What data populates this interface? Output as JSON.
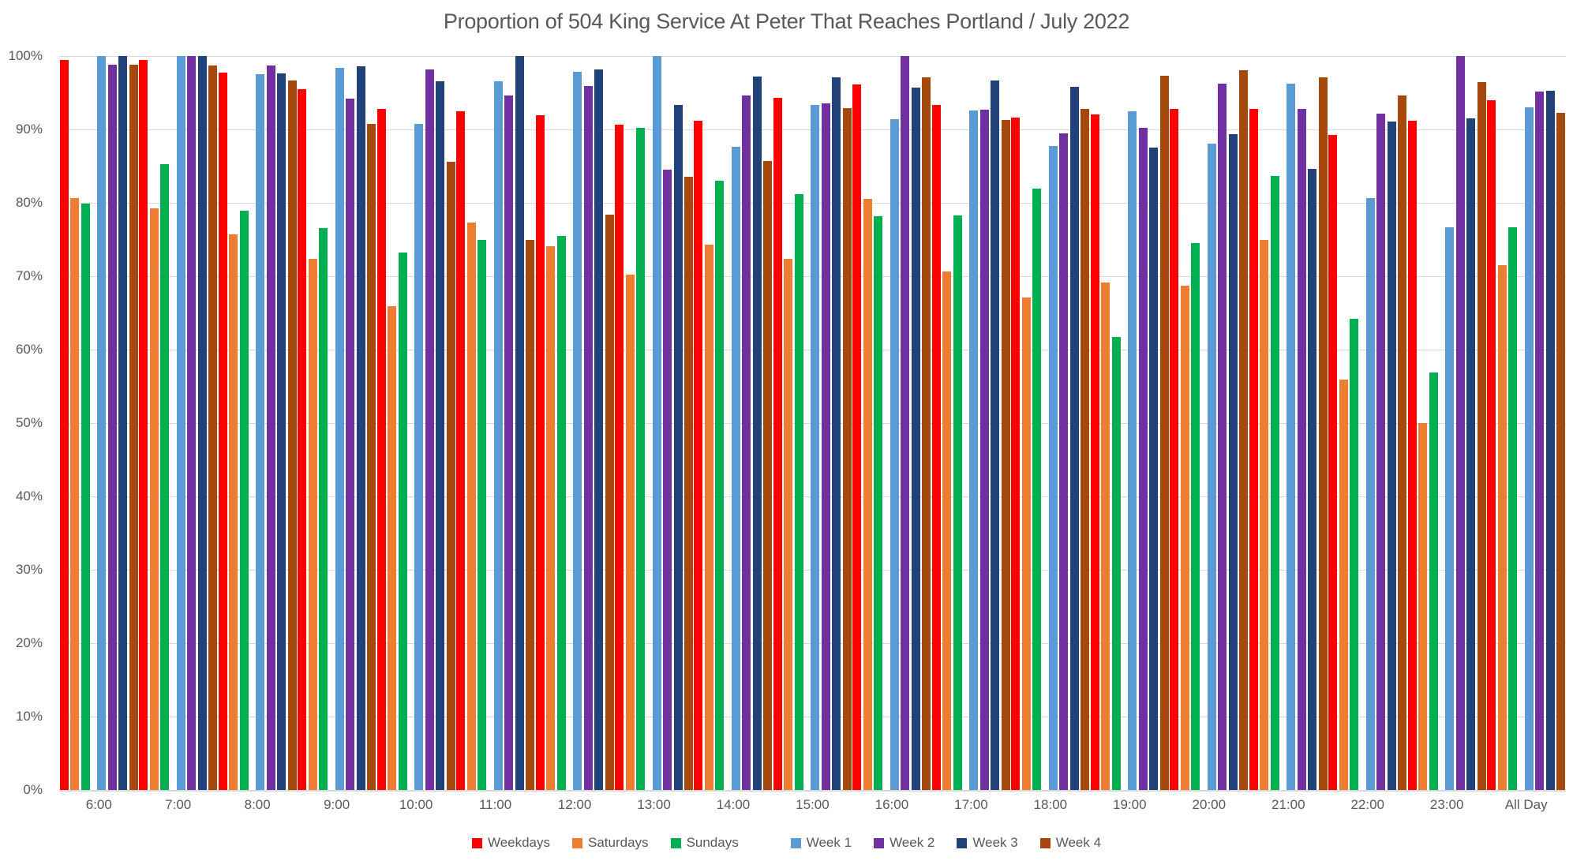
{
  "title": "Proportion of 504 King Service At Peter That Reaches Portland / July 2022",
  "colors": {
    "text": "#595959",
    "gridline": "#d9d9d9",
    "axis_line": "#d9d9d9",
    "background": "#ffffff"
  },
  "y_axis": {
    "tick_labels": [
      "100%",
      "90%",
      "80%",
      "70%",
      "60%",
      "50%",
      "40%",
      "30%",
      "20%",
      "10%",
      "0%"
    ]
  },
  "chart_data": {
    "type": "bar",
    "title": "Proportion of 504 King Service At Peter That Reaches Portland / July 2022",
    "xlabel": "",
    "ylabel": "",
    "ylim": [
      0,
      100
    ],
    "y_tick_step": 10,
    "grid": true,
    "legend_position": "bottom",
    "value_unit": "percent",
    "categories": [
      "6:00",
      "7:00",
      "8:00",
      "9:00",
      "10:00",
      "11:00",
      "12:00",
      "13:00",
      "14:00",
      "15:00",
      "16:00",
      "17:00",
      "18:00",
      "19:00",
      "20:00",
      "21:00",
      "22:00",
      "23:00",
      "All Day"
    ],
    "series": [
      {
        "name": "Weekdays",
        "color": "#FF0000",
        "values": [
          99.5,
          99.5,
          97.7,
          95.5,
          92.8,
          92.5,
          91.9,
          90.6,
          91.2,
          94.3,
          96.1,
          93.3,
          91.6,
          92.0,
          92.8,
          92.8,
          89.2,
          91.2,
          94.0
        ]
      },
      {
        "name": "Saturdays",
        "color": "#ED7D31",
        "values": [
          80.6,
          79.3,
          75.7,
          72.4,
          65.9,
          77.3,
          74.1,
          70.2,
          74.3,
          72.4,
          80.5,
          70.7,
          67.1,
          69.1,
          68.7,
          75.0,
          55.9,
          50.0,
          71.5
        ]
      },
      {
        "name": "Sundays",
        "color": "#00B050",
        "values": [
          79.9,
          85.3,
          78.9,
          76.6,
          73.2,
          75.0,
          75.5,
          90.2,
          83.0,
          81.2,
          78.2,
          78.3,
          81.9,
          61.7,
          74.5,
          83.7,
          64.2,
          56.9,
          76.7
        ]
      },
      {
        "name": "Week 1",
        "color": "#5B9BD5",
        "values": [
          100.0,
          100.0,
          97.5,
          98.4,
          90.8,
          96.6,
          97.9,
          100.0,
          87.6,
          93.3,
          91.4,
          92.6,
          87.7,
          92.5,
          88.1,
          96.2,
          80.6,
          76.7,
          93.0
        ]
      },
      {
        "name": "Week 2",
        "color": "#7030A0",
        "values": [
          98.8,
          100.0,
          98.7,
          94.2,
          98.2,
          94.6,
          95.9,
          84.5,
          94.6,
          93.6,
          100.0,
          92.7,
          89.5,
          90.2,
          96.2,
          92.8,
          92.1,
          100.0,
          95.2
        ]
      },
      {
        "name": "Week 3",
        "color": "#204278",
        "values": [
          100.0,
          100.0,
          97.6,
          98.6,
          96.6,
          100.0,
          98.2,
          93.3,
          97.2,
          97.1,
          95.7,
          96.7,
          95.8,
          87.5,
          89.4,
          84.6,
          91.1,
          91.5,
          95.3
        ]
      },
      {
        "name": "Week 4",
        "color": "#A5490F",
        "values": [
          98.8,
          98.7,
          96.7,
          90.8,
          85.6,
          74.9,
          78.4,
          83.5,
          85.7,
          92.9,
          97.1,
          91.3,
          92.8,
          97.3,
          98.1,
          97.1,
          94.6,
          96.5,
          92.3
        ]
      }
    ],
    "subgroup_gap_after_series_index": 2
  }
}
